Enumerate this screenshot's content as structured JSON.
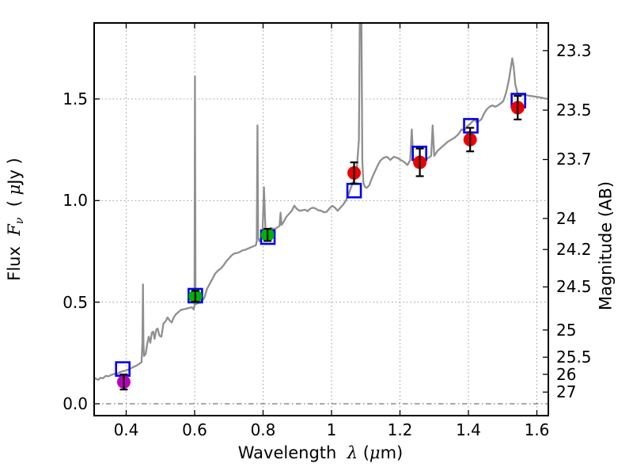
{
  "chart_data": {
    "type": "line+scatter",
    "description": "Galaxy spectral energy distribution: gray model spectrum with emission lines, observed photometry (filled circles with error bars) and model photometry (open blue squares)",
    "xlabel_parts": {
      "word": "Wavelength",
      "symbol": "λ",
      "unit_open": "(",
      "unit_mu": "μ",
      "unit_rest": "m)"
    },
    "ylabel_left_parts": {
      "word": "Flux",
      "symbol": "F",
      "subscript": "ν",
      "unit_open": "( ",
      "unit_mu": "μ",
      "unit_rest": "Jy )"
    },
    "ylabel_right": "Magnitude (AB)",
    "xlim": [
      0.3064,
      1.6335
    ],
    "ylim": [
      -0.0584,
      1.874
    ],
    "grid_on": true,
    "xticks": [
      {
        "v": 0.4,
        "label": "0.4"
      },
      {
        "v": 0.6,
        "label": "0.6"
      },
      {
        "v": 0.8,
        "label": "0.8"
      },
      {
        "v": 1.0,
        "label": "1"
      },
      {
        "v": 1.2,
        "label": "1.2"
      },
      {
        "v": 1.4,
        "label": "1.4"
      },
      {
        "v": 1.6,
        "label": "1.6"
      }
    ],
    "yticks_left": [
      {
        "v": 0.0,
        "label": "0.0"
      },
      {
        "v": 0.5,
        "label": "0.5"
      },
      {
        "v": 1.0,
        "label": "1.0"
      },
      {
        "v": 1.5,
        "label": "1.5"
      }
    ],
    "yticks_right": [
      {
        "flux": 1.738,
        "label": "23.3"
      },
      {
        "flux": 1.445,
        "label": "23.5"
      },
      {
        "flux": 1.202,
        "label": "23.7"
      },
      {
        "flux": 0.912,
        "label": "24"
      },
      {
        "flux": 0.759,
        "label": "24.2"
      },
      {
        "flux": 0.575,
        "label": "24.5"
      },
      {
        "flux": 0.363,
        "label": "25"
      },
      {
        "flux": 0.229,
        "label": "25.5"
      },
      {
        "flux": 0.145,
        "label": "26"
      },
      {
        "flux": 0.0575,
        "label": "27"
      }
    ],
    "zero_line_flux": 0.0,
    "colors": {
      "spectrum": "#8f8f8f",
      "grid": "#999999",
      "zero_line": "#555555",
      "magenta": "#bb00bb",
      "green": "#00b200",
      "red": "#ee0000",
      "blue": "#0000ee",
      "errorbar": "#000000",
      "spine": "#000000"
    },
    "spectrum": {
      "x": [
        0.306,
        0.312,
        0.318,
        0.325,
        0.332,
        0.34,
        0.348,
        0.356,
        0.365,
        0.374,
        0.382,
        0.39,
        0.398,
        0.406,
        0.414,
        0.422,
        0.43,
        0.438,
        0.445,
        0.4475,
        0.449,
        0.4505,
        0.452,
        0.457,
        0.4615,
        0.466,
        0.4705,
        0.475,
        0.479,
        0.483,
        0.488,
        0.492,
        0.497,
        0.503,
        0.509,
        0.515,
        0.521,
        0.527,
        0.533,
        0.539,
        0.545,
        0.552,
        0.56,
        0.568,
        0.576,
        0.584,
        0.592,
        0.597,
        0.5995,
        0.601,
        0.6025,
        0.606,
        0.613,
        0.62,
        0.628,
        0.636,
        0.644,
        0.652,
        0.66,
        0.668,
        0.676,
        0.684,
        0.692,
        0.7,
        0.708,
        0.716,
        0.724,
        0.732,
        0.74,
        0.748,
        0.756,
        0.764,
        0.772,
        0.779,
        0.7815,
        0.7835,
        0.7855,
        0.789,
        0.793,
        0.798,
        0.8025,
        0.807,
        0.812,
        0.818,
        0.824,
        0.83,
        0.836,
        0.842,
        0.848,
        0.851,
        0.854,
        0.86,
        0.868,
        0.876,
        0.884,
        0.891,
        0.898,
        0.906,
        0.914,
        0.922,
        0.93,
        0.938,
        0.946,
        0.954,
        0.962,
        0.97,
        0.978,
        0.986,
        0.994,
        1.002,
        1.01,
        1.018,
        1.026,
        1.034,
        1.042,
        1.05,
        1.058,
        1.066,
        1.074,
        1.08,
        1.083,
        1.087,
        1.09,
        1.093,
        1.097,
        1.103,
        1.11,
        1.118,
        1.126,
        1.134,
        1.142,
        1.152,
        1.162,
        1.172,
        1.182,
        1.192,
        1.202,
        1.212,
        1.222,
        1.23,
        1.2345,
        1.239,
        1.247,
        1.256,
        1.265,
        1.274,
        1.283,
        1.291,
        1.2955,
        1.3,
        1.31,
        1.32,
        1.33,
        1.34,
        1.35,
        1.36,
        1.37,
        1.38,
        1.388,
        1.396,
        1.404,
        1.412,
        1.418,
        1.424,
        1.43,
        1.438,
        1.446,
        1.454,
        1.462,
        1.47,
        1.478,
        1.486,
        1.494,
        1.502,
        1.51,
        1.518,
        1.524,
        1.528,
        1.532,
        1.537,
        1.543,
        1.549,
        1.556,
        1.564,
        1.572,
        1.58,
        1.59,
        1.6,
        1.612,
        1.622,
        1.633
      ],
      "y": [
        0.13,
        0.122,
        0.118,
        0.128,
        0.125,
        0.137,
        0.135,
        0.142,
        0.147,
        0.148,
        0.155,
        0.16,
        0.163,
        0.168,
        0.175,
        0.182,
        0.188,
        0.196,
        0.205,
        0.3,
        0.587,
        0.3,
        0.235,
        0.245,
        0.295,
        0.33,
        0.3,
        0.35,
        0.355,
        0.32,
        0.365,
        0.37,
        0.335,
        0.33,
        0.395,
        0.405,
        0.425,
        0.41,
        0.4,
        0.425,
        0.44,
        0.45,
        0.462,
        0.465,
        0.468,
        0.472,
        0.475,
        0.465,
        0.48,
        1.61,
        0.49,
        0.492,
        0.497,
        0.505,
        0.52,
        0.565,
        0.59,
        0.615,
        0.64,
        0.655,
        0.665,
        0.68,
        0.7,
        0.715,
        0.73,
        0.74,
        0.742,
        0.747,
        0.755,
        0.758,
        0.764,
        0.77,
        0.775,
        0.78,
        0.8,
        1.37,
        0.82,
        0.8,
        0.81,
        0.82,
        1.065,
        0.855,
        0.858,
        0.862,
        0.865,
        0.86,
        0.862,
        0.868,
        0.875,
        0.94,
        0.88,
        0.895,
        0.92,
        0.935,
        0.95,
        0.975,
        0.96,
        0.95,
        0.952,
        0.955,
        0.948,
        0.96,
        0.965,
        0.96,
        0.952,
        0.95,
        0.942,
        0.945,
        0.962,
        0.974,
        0.965,
        0.95,
        0.965,
        0.98,
        1.0,
        1.03,
        1.07,
        1.1,
        1.16,
        1.3,
        2.0,
        2.0,
        1.2,
        1.09,
        1.068,
        1.062,
        1.075,
        1.11,
        1.14,
        1.17,
        1.195,
        1.21,
        1.215,
        1.2,
        1.215,
        1.21,
        1.2,
        1.19,
        1.175,
        1.2,
        1.35,
        1.2,
        1.19,
        1.188,
        1.19,
        1.2,
        1.21,
        1.22,
        1.37,
        1.22,
        1.245,
        1.26,
        1.275,
        1.29,
        1.3,
        1.31,
        1.325,
        1.35,
        1.345,
        1.365,
        1.375,
        1.39,
        1.398,
        1.385,
        1.39,
        1.4,
        1.43,
        1.45,
        1.462,
        1.468,
        1.462,
        1.468,
        1.478,
        1.49,
        1.53,
        1.59,
        1.655,
        1.7,
        1.66,
        1.57,
        1.53,
        1.52,
        1.518,
        1.52,
        1.518,
        1.515,
        1.513,
        1.51,
        1.507,
        1.503,
        1.5
      ]
    },
    "photometry_points": [
      {
        "x": 0.393,
        "y": 0.107,
        "yerr": 0.037,
        "color": "#bb00bb"
      },
      {
        "x": 0.602,
        "y": 0.529,
        "yerr": 0.027,
        "color": "#00b200"
      },
      {
        "x": 0.813,
        "y": 0.831,
        "yerr": 0.03,
        "color": "#00b200"
      },
      {
        "x": 1.066,
        "y": 1.136,
        "yerr": 0.052,
        "color": "#ee0000"
      },
      {
        "x": 1.258,
        "y": 1.188,
        "yerr": 0.068,
        "color": "#ee0000"
      },
      {
        "x": 1.405,
        "y": 1.3,
        "yerr": 0.058,
        "color": "#ee0000"
      },
      {
        "x": 1.544,
        "y": 1.457,
        "yerr": 0.058,
        "color": "#ee0000"
      }
    ],
    "model_squares": [
      {
        "x": 0.39,
        "y": 0.171
      },
      {
        "x": 0.602,
        "y": 0.532
      },
      {
        "x": 0.814,
        "y": 0.82
      },
      {
        "x": 1.066,
        "y": 1.049
      },
      {
        "x": 1.257,
        "y": 1.232
      },
      {
        "x": 1.407,
        "y": 1.368
      },
      {
        "x": 1.546,
        "y": 1.492
      }
    ]
  }
}
